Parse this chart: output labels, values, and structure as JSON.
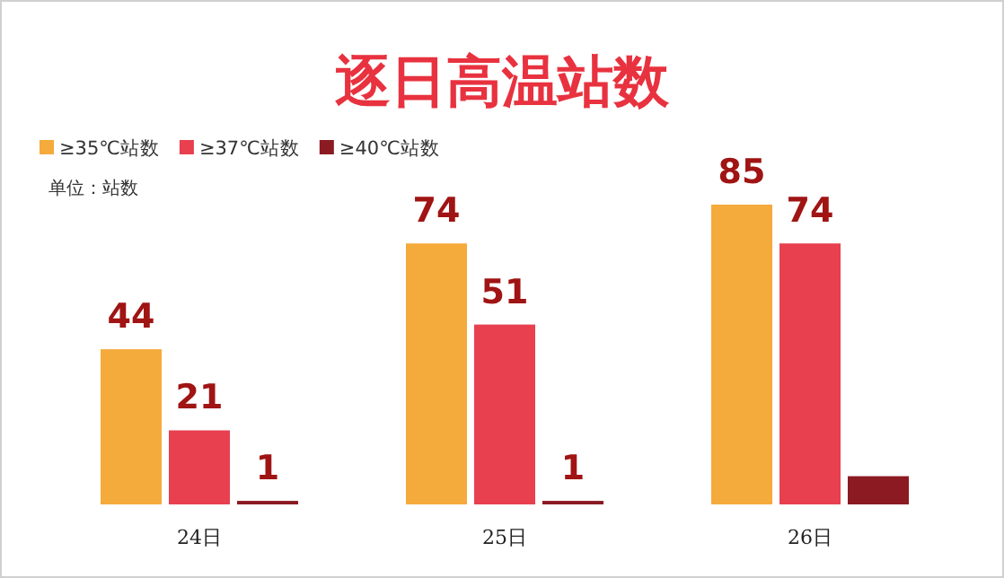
{
  "chart_data": {
    "type": "bar",
    "title": "逐日高温站数",
    "categories": [
      "24日",
      "25日",
      "26日"
    ],
    "legend": "top left",
    "annotations": [
      "单位：站数"
    ],
    "series": [
      {
        "name": "≥35℃站数",
        "color": "#f5aa3c",
        "values": [
          44,
          74,
          85
        ],
        "value_labels": [
          "44",
          "74",
          "85"
        ]
      },
      {
        "name": "≥37℃站数",
        "color": "#e8404f",
        "values": [
          21,
          51,
          74
        ],
        "value_labels": [
          "21",
          "51",
          "74"
        ]
      },
      {
        "name": "≥40℃站数",
        "color": "#8b1a22",
        "values": [
          1,
          1,
          8
        ],
        "value_labels": [
          "1",
          "1",
          null
        ]
      }
    ]
  }
}
